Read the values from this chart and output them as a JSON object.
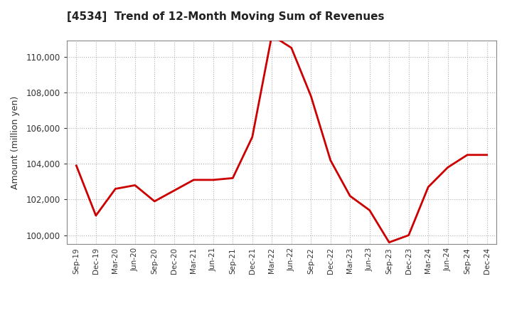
{
  "title": "[4534]  Trend of 12-Month Moving Sum of Revenues",
  "ylabel": "Amount (million yen)",
  "line_color": "#cc0000",
  "line_width": 2.0,
  "background_color": "#ffffff",
  "grid_color": "#b0b0b0",
  "ylim": [
    99500,
    110900
  ],
  "yticks": [
    100000,
    102000,
    104000,
    106000,
    108000,
    110000
  ],
  "labels": [
    "Sep-19",
    "Dec-19",
    "Mar-20",
    "Jun-20",
    "Sep-20",
    "Dec-20",
    "Mar-21",
    "Jun-21",
    "Sep-21",
    "Dec-21",
    "Mar-22",
    "Jun-22",
    "Sep-22",
    "Dec-22",
    "Mar-23",
    "Jun-23",
    "Sep-23",
    "Dec-23",
    "Mar-24",
    "Jun-24",
    "Sep-24",
    "Dec-24"
  ],
  "values": [
    103900,
    101100,
    102600,
    102800,
    101900,
    102500,
    103100,
    103100,
    103200,
    105500,
    111200,
    110500,
    107800,
    104200,
    102200,
    101400,
    99600,
    100000,
    102700,
    103800,
    104500,
    104500
  ]
}
